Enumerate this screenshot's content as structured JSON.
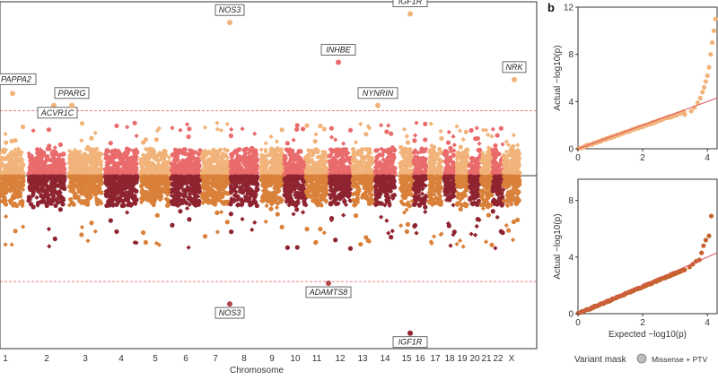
{
  "panel_b_label": "b",
  "legend": {
    "title": "Variant mask",
    "items": [
      {
        "label": "Missense + PTV",
        "color": "#bdbdbd"
      }
    ]
  },
  "chart_data": [
    {
      "id": "manhattan",
      "type": "scatter",
      "xlabel": "Chromosome",
      "categories": [
        "1",
        "2",
        "3",
        "4",
        "5",
        "6",
        "7",
        "8",
        "9",
        "10",
        "11",
        "12",
        "13",
        "14",
        "15",
        "16",
        "17",
        "18",
        "19",
        "20",
        "21",
        "22",
        "X"
      ],
      "top_panel": {
        "colors": [
          "#f2b37a",
          "#e96b6b"
        ],
        "threshold_color": "#e0555a",
        "threshold_frac": 0.37,
        "annotated_hits": [
          {
            "gene": "PAPPA2",
            "chr": "1",
            "frac": 0.47
          },
          {
            "gene": "ACVR1C",
            "chr": "2",
            "frac": 0.4
          },
          {
            "gene": "PPARG",
            "chr": "3",
            "frac": 0.4
          },
          {
            "gene": "NOS3",
            "chr": "7",
            "frac": 0.88
          },
          {
            "gene": "INHBE",
            "chr": "12",
            "frac": 0.65
          },
          {
            "gene": "NYNRIN",
            "chr": "14",
            "frac": 0.4
          },
          {
            "gene": "IGF1R",
            "chr": "15",
            "frac": 0.93
          },
          {
            "gene": "NRK",
            "chr": "X",
            "frac": 0.55
          }
        ]
      },
      "bottom_panel": {
        "colors": [
          "#d9803a",
          "#8f2430"
        ],
        "threshold_color": "#e0555a",
        "threshold_frac": 0.61,
        "annotated_hits": [
          {
            "gene": "ADAMTS8",
            "chr": "12",
            "frac": 0.62
          },
          {
            "gene": "NOS3",
            "chr": "7",
            "frac": 0.74
          },
          {
            "gene": "IGF1R",
            "chr": "15",
            "frac": 0.91
          }
        ]
      }
    },
    {
      "id": "qq-top",
      "type": "scatter",
      "ylabel": "Actual −log10(p)",
      "xlim": [
        0,
        4.3
      ],
      "ylim": [
        0,
        12
      ],
      "xticks": [
        0,
        2,
        4
      ],
      "yticks": [
        0,
        4,
        8,
        12
      ],
      "point_color": "#f2b37a",
      "line_color": "#e0555a",
      "tail_points": [
        [
          3.3,
          2.9
        ],
        [
          3.5,
          3.2
        ],
        [
          3.6,
          3.5
        ],
        [
          3.7,
          3.9
        ],
        [
          3.78,
          4.3
        ],
        [
          3.85,
          4.8
        ],
        [
          3.9,
          5.2
        ],
        [
          3.95,
          5.7
        ],
        [
          4.0,
          6.2
        ],
        [
          4.05,
          6.9
        ],
        [
          4.1,
          8.0
        ],
        [
          4.15,
          9.0
        ],
        [
          4.2,
          10.0
        ],
        [
          4.25,
          11.0
        ]
      ]
    },
    {
      "id": "qq-bottom",
      "type": "scatter",
      "xlabel": "Expected −log10(p)",
      "ylabel": "Actual −log10(p)",
      "xlim": [
        0,
        4.3
      ],
      "ylim": [
        0,
        9.5
      ],
      "xticks": [
        0,
        2,
        4
      ],
      "yticks": [
        0,
        4,
        8
      ],
      "point_color": "#c4632e",
      "line_color": "#e0555a",
      "tail_points": [
        [
          3.3,
          3.1
        ],
        [
          3.45,
          3.3
        ],
        [
          3.55,
          3.5
        ],
        [
          3.65,
          3.7
        ],
        [
          3.75,
          3.8
        ],
        [
          3.82,
          4.3
        ],
        [
          3.88,
          4.8
        ],
        [
          3.95,
          5.2
        ],
        [
          4.05,
          5.5
        ],
        [
          4.12,
          6.9
        ]
      ]
    }
  ]
}
